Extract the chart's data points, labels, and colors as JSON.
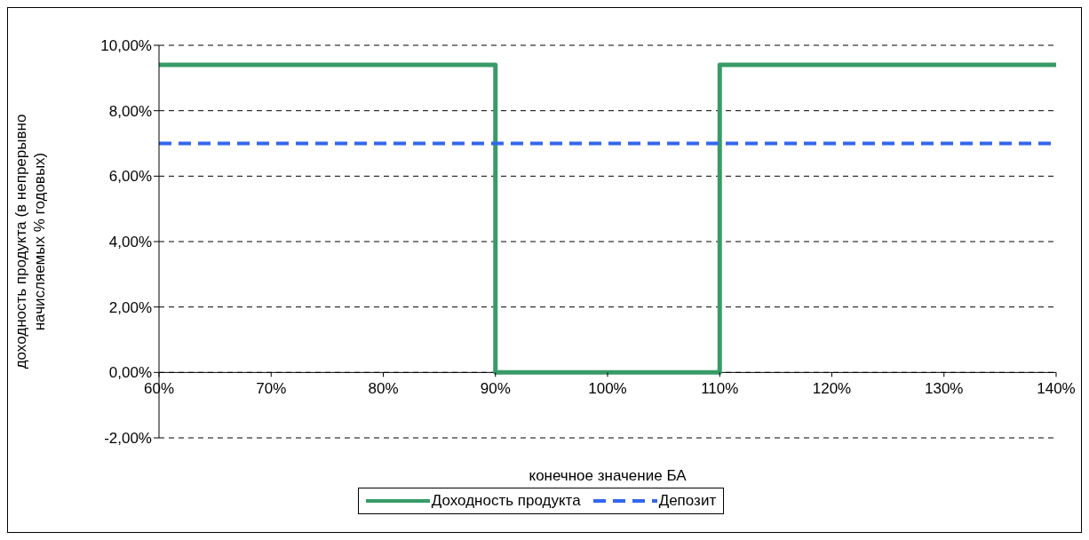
{
  "chart_data": {
    "type": "line",
    "xlabel": "конечное значение БА",
    "ylabel": "доходность продукта (в непрерывно начисляемых % годовых)",
    "xlim": [
      60,
      140
    ],
    "xticks": [
      {
        "value": 60,
        "label": "60%"
      },
      {
        "value": 70,
        "label": "70%"
      },
      {
        "value": 80,
        "label": "80%"
      },
      {
        "value": 90,
        "label": "90%"
      },
      {
        "value": 100,
        "label": "100%"
      },
      {
        "value": 110,
        "label": "110%"
      },
      {
        "value": 120,
        "label": "120%"
      },
      {
        "value": 130,
        "label": "130%"
      },
      {
        "value": 140,
        "label": "140%"
      }
    ],
    "ylim": [
      -2,
      10
    ],
    "yticks": [
      {
        "value": -2,
        "label": "-2,00%"
      },
      {
        "value": 0,
        "label": "0,00%"
      },
      {
        "value": 2,
        "label": "2,00%"
      },
      {
        "value": 4,
        "label": "4,00%"
      },
      {
        "value": 6,
        "label": "6,00%"
      },
      {
        "value": 8,
        "label": "8,00%"
      },
      {
        "value": 10,
        "label": "10,00%"
      }
    ],
    "grid": "y",
    "legend": "bottom",
    "marker": "none",
    "series": [
      {
        "name": "Доходность продукта",
        "color": "#389b67",
        "line_style": "solid",
        "x": [
          60,
          90,
          90,
          110,
          110,
          140
        ],
        "values": [
          9.4,
          9.4,
          0,
          0,
          9.4,
          9.4
        ]
      },
      {
        "name": "Депозит",
        "color": "#3366ee",
        "line_style": "dashed",
        "x": [
          60,
          140
        ],
        "values": [
          7,
          7
        ]
      }
    ]
  }
}
